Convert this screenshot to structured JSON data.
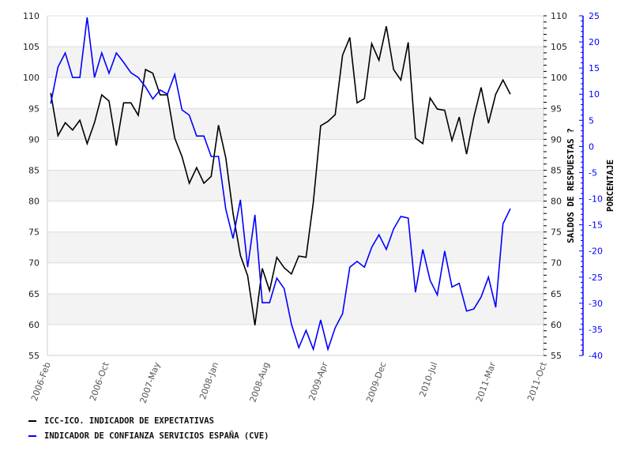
{
  "chart_data": {
    "type": "line",
    "title": "",
    "x_tick_labels": [
      "2006-Feb",
      "2006-Oct",
      "2007-May",
      "2008-Jan",
      "2008-Aug",
      "2009-Apr",
      "2009-Dec",
      "2010-Jul",
      "2011-Mar",
      "2011-Oct"
    ],
    "x_tick_months": [
      0,
      8,
      15,
      23,
      30,
      38,
      46,
      53,
      61,
      68
    ],
    "x_start_month_offset": 0.45,
    "x_range_months": [
      0,
      68
    ],
    "left_axis": {
      "range": [
        55,
        110
      ],
      "ticks": [
        110,
        105,
        100,
        95,
        90,
        85,
        80,
        75,
        70,
        65,
        60,
        55
      ]
    },
    "right_axis_1": {
      "label": "SALDOS DE RESPUESTAS ?",
      "range": [
        55,
        110
      ],
      "ticks": [
        110,
        105,
        100,
        95,
        90,
        85,
        80,
        75,
        70,
        65,
        60,
        55
      ]
    },
    "right_axis_2": {
      "label": "PORCENTAJE",
      "range": [
        -40,
        25
      ],
      "ticks": [
        25,
        20,
        15,
        10,
        5,
        0,
        -5,
        -10,
        -15,
        -20,
        -25,
        -30,
        -35,
        -40
      ],
      "color": "#0000ff"
    },
    "grid": true,
    "legend_position": "bottom-left",
    "series": [
      {
        "name": "ICC-ICO. INDICADOR DE EXPECTATIVAS",
        "color": "#000000",
        "axis": "left",
        "values": [
          97.5,
          90.6,
          92.7,
          91.5,
          93.1,
          89.3,
          92.7,
          97.2,
          96.2,
          89.0,
          95.9,
          95.9,
          93.9,
          101.3,
          100.7,
          97.2,
          97.2,
          90.2,
          87.2,
          82.9,
          85.4,
          82.9,
          84.0,
          92.3,
          87.0,
          78.0,
          71.2,
          67.9,
          59.9,
          69.1,
          65.5,
          70.9,
          69.2,
          68.2,
          71.1,
          70.9,
          79.8,
          92.2,
          92.9,
          94.0,
          103.6,
          106.5,
          95.9,
          96.6,
          105.5,
          102.8,
          108.3,
          101.3,
          99.6,
          105.7,
          90.2,
          89.3,
          96.7,
          94.9,
          94.7,
          89.8,
          93.6,
          87.6,
          93.6,
          98.4,
          92.6,
          97.3,
          99.6,
          97.3
        ]
      },
      {
        "name": "INDICADOR DE CONFIANZA SERVICIOS ESPAÑA (CVE)",
        "color": "#0000ff",
        "axis": "right_2",
        "values": [
          8.2,
          15.2,
          17.9,
          13.2,
          13.2,
          24.7,
          13.2,
          17.9,
          14.0,
          17.9,
          16.1,
          14.1,
          13.2,
          11.4,
          9.1,
          10.8,
          10.0,
          13.8,
          7.0,
          6.0,
          2.0,
          2.0,
          -1.9,
          -1.9,
          -12.0,
          -17.6,
          -10.2,
          -23.1,
          -13.1,
          -29.9,
          -29.9,
          -25.2,
          -27.2,
          -34.0,
          -38.5,
          -35.2,
          -38.8,
          -33.2,
          -38.8,
          -34.7,
          -32.0,
          -23.1,
          -22.0,
          -23.1,
          -19.3,
          -16.9,
          -19.7,
          -15.8,
          -13.4,
          -13.7,
          -27.9,
          -19.7,
          -25.6,
          -28.4,
          -20.0,
          -26.9,
          -26.2,
          -31.5,
          -31.1,
          -28.8,
          -25.0,
          -30.8,
          -14.8,
          -11.9
        ]
      }
    ]
  }
}
